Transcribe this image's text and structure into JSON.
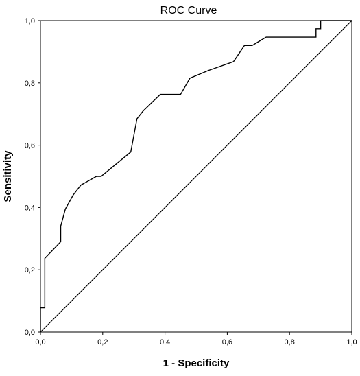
{
  "chart_data": {
    "type": "line",
    "title": "ROC Curve",
    "xlabel": "1 - Specificity",
    "ylabel": "Sensitivity",
    "xlim": [
      0,
      1
    ],
    "ylim": [
      0,
      1
    ],
    "xticks": [
      "0,0",
      "0,2",
      "0,4",
      "0,6",
      "0,8",
      "1,0"
    ],
    "yticks": [
      "0,0",
      "0,2",
      "0,4",
      "0,6",
      "0,8",
      "1,0"
    ],
    "grid": false,
    "legend": "none",
    "series": [
      {
        "x": [
          0.0,
          0.0,
          0.014,
          0.014,
          0.065,
          0.065,
          0.08,
          0.105,
          0.13,
          0.18,
          0.195,
          0.29,
          0.31,
          0.33,
          0.385,
          0.45,
          0.48,
          0.54,
          0.62,
          0.655,
          0.68,
          0.725,
          0.885,
          0.885,
          0.9,
          0.9,
          1.0
        ],
        "y": [
          0.0,
          0.078,
          0.078,
          0.237,
          0.29,
          0.34,
          0.395,
          0.44,
          0.472,
          0.5,
          0.5,
          0.578,
          0.685,
          0.71,
          0.763,
          0.763,
          0.815,
          0.84,
          0.868,
          0.92,
          0.92,
          0.947,
          0.947,
          0.974,
          0.974,
          1.0,
          1.0
        ]
      },
      {
        "x": [
          0,
          1
        ],
        "y": [
          0,
          1
        ]
      }
    ]
  }
}
